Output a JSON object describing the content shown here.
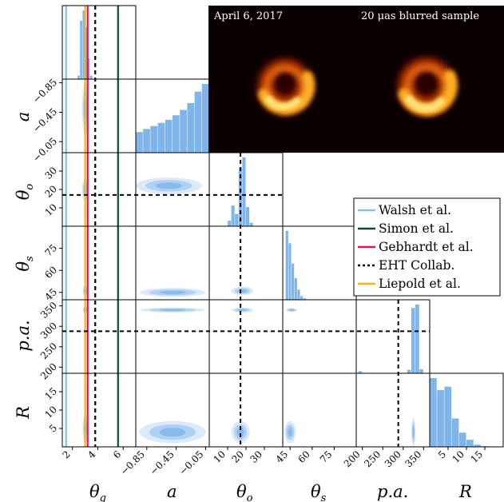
{
  "chart_data": {
    "type": "corner",
    "parameters": [
      {
        "label": "θ",
        "sub": "g",
        "ticks": [
          "2",
          "4",
          "6"
        ],
        "tick_values": [
          2,
          4,
          6
        ],
        "range": [
          1.2,
          7.0
        ]
      },
      {
        "label": "a",
        "sub": "",
        "ticks": [
          "−0.85",
          "−0.45",
          "−0.05"
        ],
        "tick_values": [
          -0.85,
          -0.45,
          -0.05
        ],
        "range": [
          -1.0,
          0.0
        ]
      },
      {
        "label": "θ",
        "sub": "o",
        "ticks": [
          "10",
          "20",
          "30"
        ],
        "tick_values": [
          10,
          20,
          30
        ],
        "range": [
          0,
          40
        ]
      },
      {
        "label": "θ",
        "sub": "s",
        "ticks": [
          "45",
          "60",
          "75"
        ],
        "tick_values": [
          45,
          60,
          75
        ],
        "range": [
          40,
          90
        ]
      },
      {
        "label": "p.a.",
        "sub": "",
        "ticks": [
          "200",
          "250",
          "300",
          "350"
        ],
        "tick_values": [
          200,
          250,
          300,
          350
        ],
        "range": [
          185,
          365
        ]
      },
      {
        "label": "R",
        "sub": "",
        "ticks": [
          "5",
          "10",
          "15"
        ],
        "tick_values": [
          5,
          10,
          15
        ],
        "range": [
          0,
          20
        ]
      }
    ],
    "y_ticks": {
      "a": [
        "−0.05",
        "−0.45",
        "−0.85"
      ],
      "theta_o": [
        "10",
        "20",
        "30"
      ],
      "theta_s": [
        "45",
        "60",
        "75"
      ],
      "pa": [
        "200",
        "250",
        "300",
        "350"
      ],
      "R": [
        "5",
        "10",
        "15"
      ]
    },
    "reference_lines": [
      {
        "name": "Walsh et al.",
        "param": "theta_g",
        "value": 1.5,
        "color": "#7ec3ea",
        "style": "solid"
      },
      {
        "name": "Simon et al.",
        "param": "theta_g",
        "value": 5.6,
        "color": "#0b4a36",
        "style": "solid"
      },
      {
        "name": "Gebhardt et al.",
        "param": "theta_g",
        "value": 3.2,
        "color": "#e0115f",
        "style": "solid"
      },
      {
        "name": "EHT Collab.",
        "param": "theta_g",
        "value": 3.8,
        "color": "#000000",
        "style": "dashed"
      },
      {
        "name": "Liepold et al.",
        "param": "theta_g",
        "value": 3.0,
        "color": "#f2b705",
        "style": "solid"
      }
    ],
    "eht_reference": {
      "theta_g": 3.8,
      "theta_o": 17,
      "pa": 288
    },
    "histograms": {
      "theta_g": {
        "edges": [
          2.4,
          2.6,
          2.8,
          3.0,
          3.2,
          3.4,
          3.6
        ],
        "counts": [
          0.05,
          0.85,
          1.0,
          0.75,
          0.3,
          0.05
        ]
      },
      "a": {
        "edges": [
          -1.0,
          -0.9,
          -0.8,
          -0.7,
          -0.6,
          -0.5,
          -0.4,
          -0.3,
          -0.2,
          -0.1,
          0.0
        ],
        "counts": [
          0.27,
          0.31,
          0.35,
          0.39,
          0.43,
          0.49,
          0.56,
          0.65,
          0.8,
          0.9
        ]
      },
      "theta_o": {
        "edges": [
          10,
          12,
          14,
          16,
          18,
          20,
          22,
          24
        ],
        "counts": [
          0.08,
          0.3,
          0.18,
          0.85,
          1.0,
          0.28,
          0.05
        ]
      },
      "theta_s": {
        "edges": [
          42,
          44,
          46,
          48,
          50,
          52,
          54,
          56
        ],
        "counts": [
          0.95,
          0.78,
          0.5,
          0.3,
          0.14,
          0.05,
          0.02
        ]
      },
      "pa": {
        "edges": [
          190,
          200,
          310,
          320,
          330,
          340,
          350
        ],
        "counts": [
          0.03,
          0.0,
          0.05,
          0.95,
          1.0,
          0.06
        ]
      },
      "R": {
        "edges": [
          0,
          2,
          4,
          6,
          8,
          10,
          12,
          14,
          16
        ],
        "counts": [
          0.97,
          0.8,
          0.85,
          0.4,
          0.2,
          0.1,
          0.03,
          0.01
        ]
      }
    },
    "image_panels": [
      {
        "title": "April 6, 2017"
      },
      {
        "title": "20 μas blurred sample"
      }
    ],
    "legend": [
      "Walsh et al.",
      "Simon et al.",
      "Gebhardt et al.",
      "EHT Collab.",
      "Liepold et al."
    ],
    "legend_position": "right"
  }
}
